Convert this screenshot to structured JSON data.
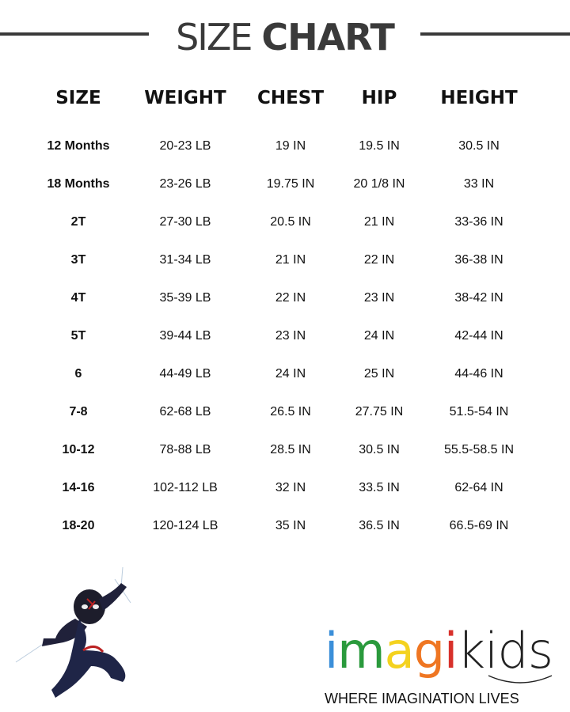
{
  "title": {
    "light": "SIZE",
    "bold": "CHART"
  },
  "headers": [
    "SIZE",
    "WEIGHT",
    "CHEST",
    "HIP",
    "HEIGHT"
  ],
  "rows": [
    [
      "12 Months",
      "20-23 LB",
      "19 IN",
      "19.5 IN",
      "30.5 IN"
    ],
    [
      "18 Months",
      "23-26 LB",
      "19.75 IN",
      "20 1/8 IN",
      "33 IN"
    ],
    [
      "2T",
      "27-30 LB",
      "20.5 IN",
      "21 IN",
      "33-36 IN"
    ],
    [
      "3T",
      "31-34 LB",
      "21 IN",
      "22 IN",
      "36-38 IN"
    ],
    [
      "4T",
      "35-39 LB",
      "22 IN",
      "23 IN",
      "38-42 IN"
    ],
    [
      "5T",
      "39-44 LB",
      "23 IN",
      "24 IN",
      "42-44 IN"
    ],
    [
      "6",
      "44-49 LB",
      "24 IN",
      "25 IN",
      "44-46 IN"
    ],
    [
      "7-8",
      "62-68 LB",
      "26.5 IN",
      "27.75 IN",
      "51.5-54 IN"
    ],
    [
      "10-12",
      "78-88 LB",
      "28.5 IN",
      "30.5 IN",
      "55.5-58.5 IN"
    ],
    [
      "14-16",
      "102-112 LB",
      "32 IN",
      "33.5 IN",
      "62-64 IN"
    ],
    [
      "18-20",
      "120-124 LB",
      "35 IN",
      "36.5 IN",
      "66.5-69 IN"
    ]
  ],
  "logo": {
    "letters": [
      {
        "char": "i",
        "color": "#3b8fd9"
      },
      {
        "char": "m",
        "color": "#2a9a3c"
      },
      {
        "char": "a",
        "color": "#f4d21f"
      },
      {
        "char": "g",
        "color": "#ef7622"
      },
      {
        "char": "i",
        "color": "#d8312b"
      }
    ],
    "suffix": "kids",
    "tagline": "WHERE IMAGINATION LIVES"
  },
  "illustration": "spider-hero-figure"
}
